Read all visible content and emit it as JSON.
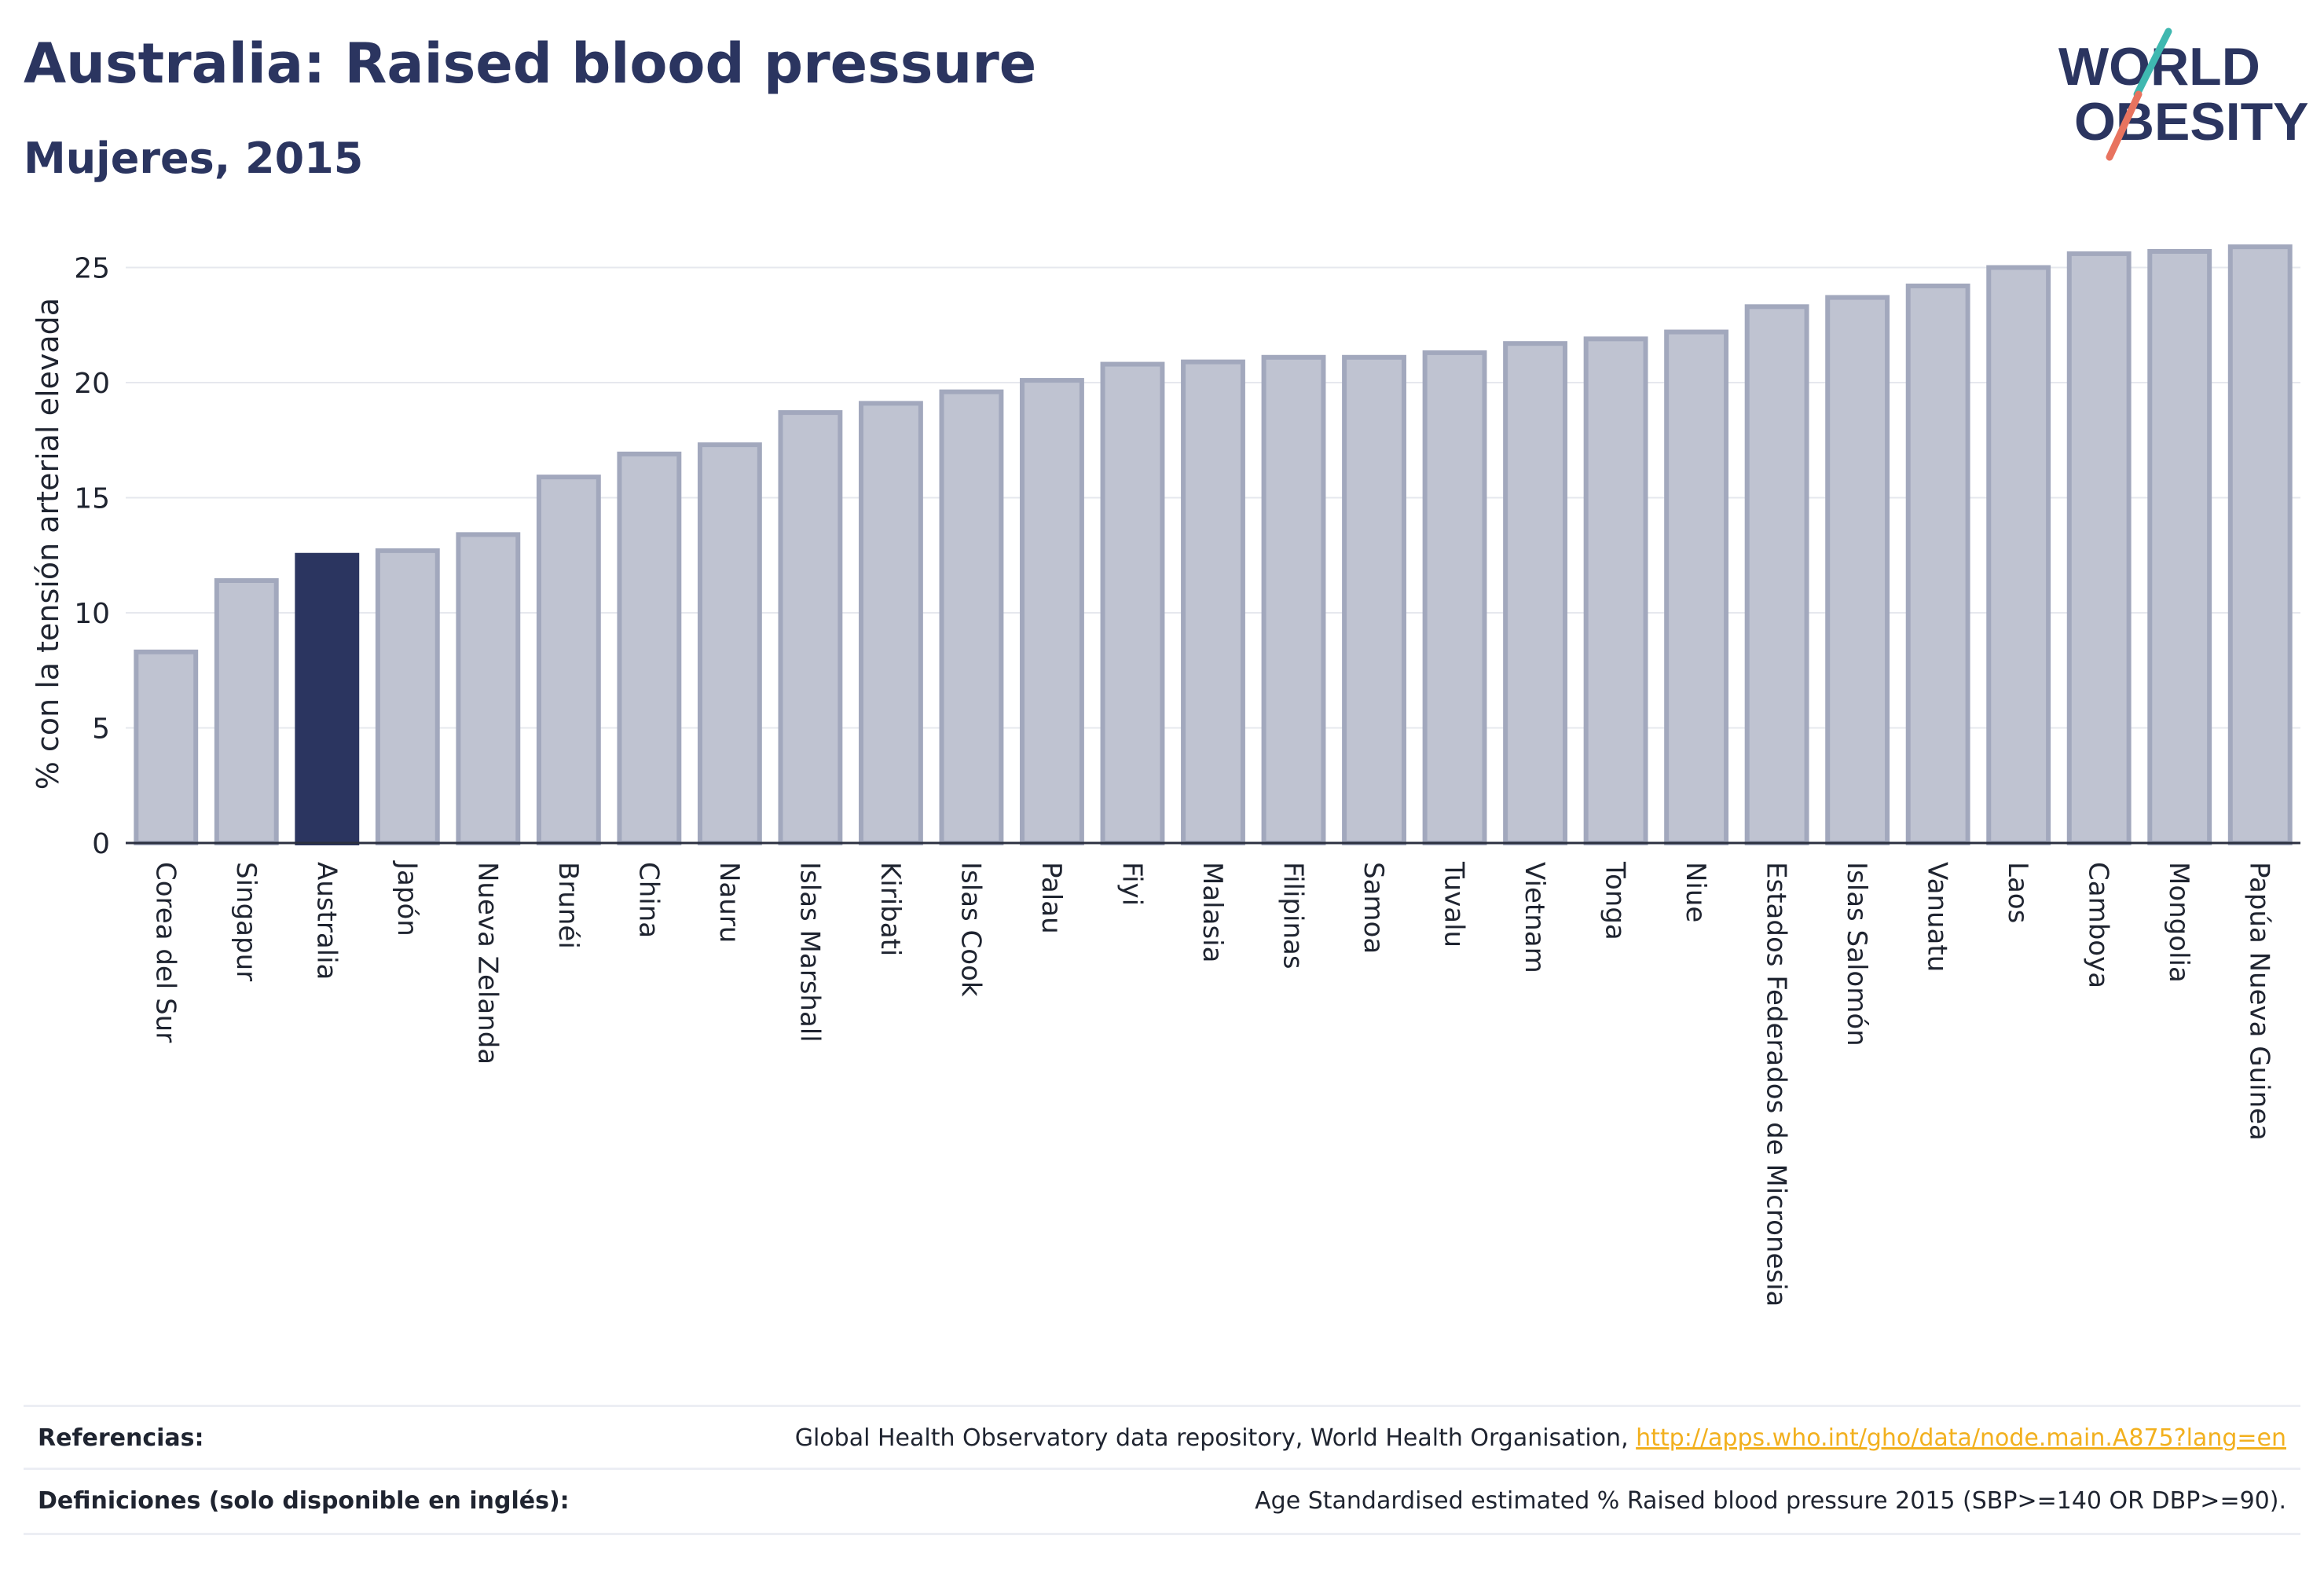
{
  "header": {
    "title": "Australia: Raised blood pressure",
    "subtitle": "Mujeres, 2015"
  },
  "logo": {
    "line1": "WORLD",
    "line2": "OBESITY",
    "colors": {
      "text": "#2b3560",
      "slash_red": "#e8735f",
      "slash_teal": "#3fb8b0"
    }
  },
  "chart_data": {
    "type": "bar",
    "ylabel": "% con la tensión arterial elevada",
    "xlabel": "",
    "ylim": [
      0,
      27
    ],
    "yticks": [
      0,
      5,
      10,
      15,
      20,
      25
    ],
    "grid": true,
    "highlight": "Australia",
    "colors": {
      "bar": "#bfc3d1",
      "bar_border": "#a2a8bd",
      "highlight": "#2b3560"
    },
    "categories": [
      "Corea del Sur",
      "Singapur",
      "Australia",
      "Japón",
      "Nueva Zelanda",
      "Brunéi",
      "China",
      "Nauru",
      "Islas Marshall",
      "Kiribati",
      "Islas Cook",
      "Palau",
      "Fiyi",
      "Malasia",
      "Filipinas",
      "Samoa",
      "Tuvalu",
      "Vietnam",
      "Tonga",
      "Niue",
      "Estados Federados de Micronesia",
      "Islas Salomón",
      "Vanuatu",
      "Laos",
      "Camboya",
      "Mongolia",
      "Papúa Nueva Guinea"
    ],
    "values": [
      8.3,
      11.4,
      12.5,
      12.7,
      13.4,
      15.9,
      16.9,
      17.3,
      18.7,
      19.1,
      19.6,
      20.1,
      20.8,
      20.9,
      21.1,
      21.1,
      21.3,
      21.7,
      21.9,
      22.2,
      23.3,
      23.7,
      24.2,
      25.0,
      25.6,
      25.7,
      25.9
    ]
  },
  "footer": {
    "references_label": "Referencias:",
    "references_text": "Global Health Observatory data repository, World Health Organisation, ",
    "references_link": "http://apps.who.int/gho/data/node.main.A875?lang=en",
    "definitions_label": "Definiciones (solo disponible en inglés):",
    "definitions_text": "Age Standardised estimated % Raised blood pressure 2015 (SBP>=140 OR DBP>=90)."
  }
}
